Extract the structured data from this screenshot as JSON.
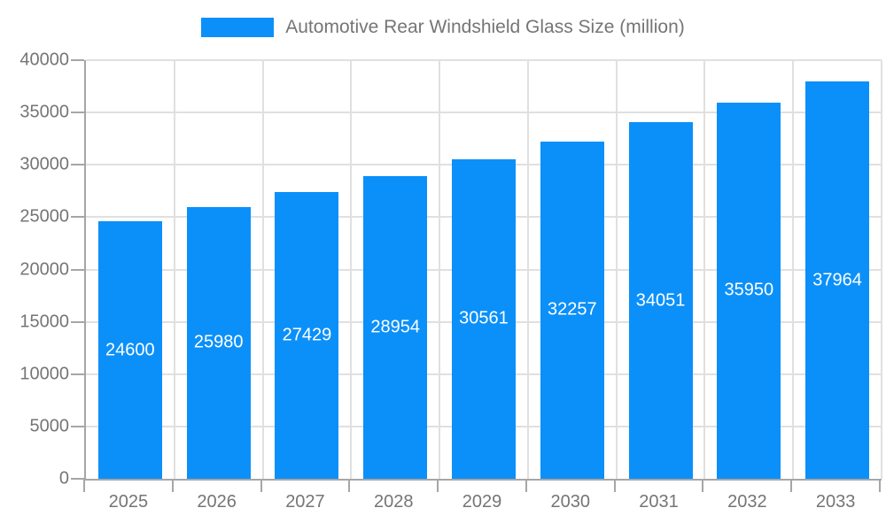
{
  "chart_data": {
    "type": "bar",
    "title": "Automotive Rear Windshield Glass Size (million)",
    "categories": [
      "2025",
      "2026",
      "2027",
      "2028",
      "2029",
      "2030",
      "2031",
      "2032",
      "2033"
    ],
    "values": [
      24600,
      25980,
      27429,
      28954,
      30561,
      32257,
      34051,
      35950,
      37964
    ],
    "xlabel": "",
    "ylabel": "",
    "ylim": [
      0,
      40000
    ],
    "yticks": [
      0,
      5000,
      10000,
      15000,
      20000,
      25000,
      30000,
      35000,
      40000
    ],
    "grid": "horizontal and vertical gridlines on",
    "legend_position": "top-center",
    "bar_color": "#0b90f9",
    "bar_label_color": "#ffffff"
  },
  "legend": {
    "label": "Automotive Rear Windshield Glass Size (million)"
  },
  "colors": {
    "accent_blue": "#0b90f9",
    "grid_line": "#e0e0e0",
    "axis_line": "#a6a6a6",
    "tick_label_text": "#757575",
    "legend_text": "#757575",
    "background": "#ffffff"
  }
}
